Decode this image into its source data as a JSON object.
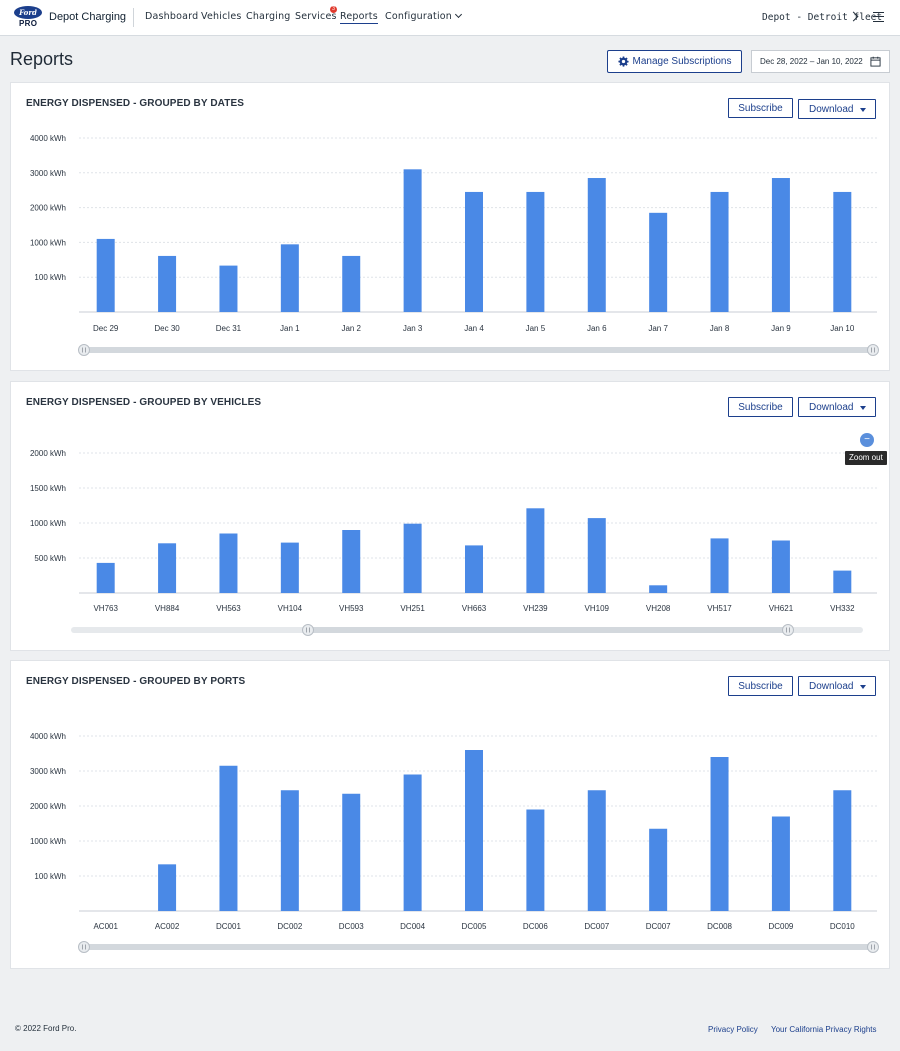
{
  "header": {
    "logo_text": "Ford",
    "logo_sub": "PRO",
    "app_name": "Depot Charging",
    "nav": [
      "Dashboard",
      "Vehicles",
      "Charging",
      "Services",
      "Reports",
      "Configuration"
    ],
    "services_badge": "3",
    "active_nav": "Reports",
    "depot": "Depot - Detroit fleet"
  },
  "page": {
    "title": "Reports",
    "manage_label": "Manage Subscriptions",
    "date_range": "Dec 28, 2022 – Jan 10, 2022"
  },
  "actions": {
    "subscribe": "Subscribe",
    "download": "Download"
  },
  "zoom": {
    "tooltip": "Zoom out",
    "icon": "−"
  },
  "colors": {
    "bar": "#4a89e6",
    "accent": "#1c3f8c"
  },
  "chart_data": [
    {
      "type": "bar",
      "title": "ENERGY DISPENSED - GROUPED BY DATES",
      "y_ticks": [
        "4000 kWh",
        "3000 kWh",
        "2000 kWh",
        "1000 kWh",
        "100 kWh"
      ],
      "categories": [
        "Dec 29",
        "Dec 30",
        "Dec 31",
        "Jan 1",
        "Jan 2",
        "Jan 3",
        "Jan 4",
        "Jan 5",
        "Jan 6",
        "Jan 7",
        "Jan 8",
        "Jan 9",
        "Jan 10"
      ],
      "values": [
        1100,
        650,
        400,
        950,
        650,
        3100,
        2450,
        2450,
        2850,
        1850,
        2450,
        2850,
        2450
      ]
    },
    {
      "type": "bar",
      "title": "ENERGY DISPENSED - GROUPED BY VEHICLES",
      "y_ticks": [
        "2000 kWh",
        "1500 kWh",
        "1000 kWh",
        "500 kWh"
      ],
      "categories": [
        "VH763",
        "VH884",
        "VH563",
        "VH104",
        "VH593",
        "VH251",
        "VH663",
        "VH239",
        "VH109",
        "VH208",
        "VH517",
        "VH621",
        "VH332"
      ],
      "values": [
        430,
        710,
        850,
        720,
        900,
        990,
        680,
        1210,
        1070,
        110,
        780,
        750,
        320
      ]
    },
    {
      "type": "bar",
      "title": "ENERGY DISPENSED - GROUPED BY PORTS",
      "y_ticks": [
        "4000 kWh",
        "3000 kWh",
        "2000 kWh",
        "1000 kWh",
        "100 kWh"
      ],
      "categories": [
        "AC001",
        "AC002",
        "DC001",
        "DC002",
        "DC003",
        "DC004",
        "DC005",
        "DC006",
        "DC007",
        "DC007",
        "DC008",
        "DC009",
        "DC010"
      ],
      "values": [
        0,
        400,
        3150,
        2450,
        2350,
        2900,
        3600,
        1900,
        2450,
        1350,
        3400,
        1700,
        2450
      ]
    }
  ],
  "footer": {
    "copyright": "© 2022 Ford Pro.",
    "links": [
      "Privacy Policy",
      "Your California Privacy Rights"
    ]
  }
}
